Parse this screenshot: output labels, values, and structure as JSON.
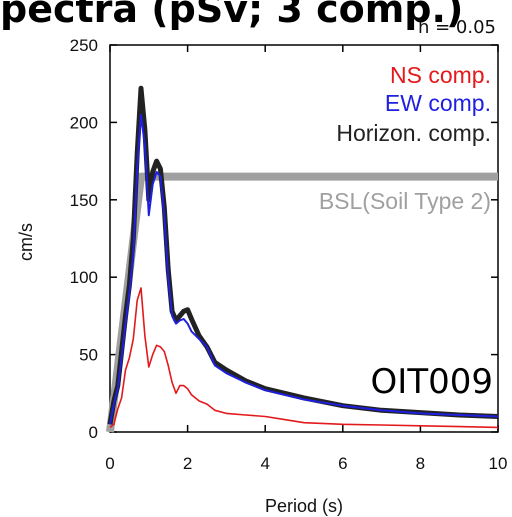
{
  "cut_title": "pectra (pSv; 3 comp.)",
  "chart_data": {
    "type": "line",
    "xlabel": "Period (s)",
    "ylabel": "cm/s",
    "xlim": [
      0,
      10
    ],
    "ylim": [
      0,
      250
    ],
    "xticks": [
      0,
      2,
      4,
      6,
      8,
      10
    ],
    "yticks": [
      0,
      50,
      100,
      150,
      200,
      250
    ],
    "damping_label": "h = 0.05",
    "station_label": "OIT009",
    "series": [
      {
        "name": "NS comp.",
        "color": "#e31a1c",
        "x": [
          0.0,
          0.1,
          0.2,
          0.3,
          0.4,
          0.5,
          0.6,
          0.7,
          0.8,
          0.9,
          1.0,
          1.1,
          1.2,
          1.3,
          1.4,
          1.5,
          1.6,
          1.7,
          1.8,
          1.9,
          2.0,
          2.1,
          2.3,
          2.5,
          2.7,
          3.0,
          3.5,
          4.0,
          4.5,
          5.0,
          6.0,
          7.0,
          8.0,
          9.0,
          10.0
        ],
        "values": [
          3,
          5,
          15,
          22,
          40,
          48,
          60,
          85,
          93,
          62,
          42,
          50,
          56,
          55,
          52,
          43,
          32,
          25,
          30,
          30,
          28,
          24,
          20,
          18,
          14,
          12,
          11,
          10,
          8,
          6,
          5,
          4.5,
          4,
          3.5,
          3
        ]
      },
      {
        "name": "EW comp.",
        "color": "#1f1fe0",
        "x": [
          0.0,
          0.1,
          0.2,
          0.3,
          0.4,
          0.5,
          0.6,
          0.7,
          0.8,
          0.9,
          1.0,
          1.1,
          1.2,
          1.3,
          1.4,
          1.5,
          1.6,
          1.7,
          1.8,
          1.9,
          2.0,
          2.1,
          2.3,
          2.5,
          2.7,
          3.0,
          3.5,
          4.0,
          4.5,
          5.0,
          6.0,
          7.0,
          8.0,
          9.0,
          10.0
        ],
        "values": [
          5,
          18,
          28,
          48,
          70,
          90,
          115,
          170,
          205,
          185,
          140,
          160,
          168,
          165,
          140,
          100,
          75,
          70,
          72,
          73,
          70,
          65,
          60,
          55,
          43,
          38,
          32,
          27,
          24,
          21,
          17,
          14,
          12,
          11,
          10
        ]
      },
      {
        "name": "Horizon. comp.",
        "color": "#222222",
        "x": [
          0.0,
          0.1,
          0.2,
          0.3,
          0.4,
          0.5,
          0.6,
          0.7,
          0.8,
          0.9,
          1.0,
          1.1,
          1.2,
          1.3,
          1.4,
          1.5,
          1.6,
          1.7,
          1.8,
          1.9,
          2.0,
          2.1,
          2.3,
          2.5,
          2.7,
          3.0,
          3.5,
          4.0,
          4.5,
          5.0,
          6.0,
          7.0,
          8.0,
          9.0,
          10.0
        ],
        "values": [
          5,
          20,
          30,
          52,
          75,
          95,
          125,
          180,
          222,
          195,
          150,
          168,
          175,
          170,
          145,
          105,
          78,
          72,
          75,
          78,
          79,
          73,
          62,
          55,
          45,
          40,
          33,
          28,
          25,
          22,
          17,
          14,
          12.5,
          11,
          10
        ]
      },
      {
        "name": "BSL(Soil Type 2)",
        "color": "#a0a0a0",
        "x": [
          0.0,
          0.8,
          10.0
        ],
        "values": [
          0,
          165,
          165
        ]
      }
    ]
  }
}
